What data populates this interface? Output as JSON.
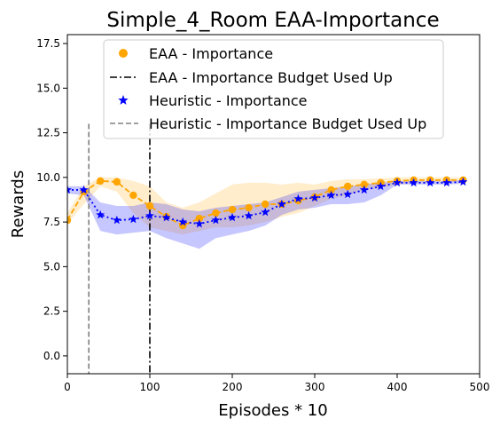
{
  "chart_data": {
    "type": "line",
    "title": "Simple_4_Room EAA-Importance",
    "xlabel": "Episodes * 10",
    "ylabel": "Rewards",
    "xlim": [
      0,
      500
    ],
    "ylim": [
      -1.0,
      18.0
    ],
    "xticks": [
      0,
      100,
      200,
      300,
      400,
      500
    ],
    "yticks": [
      0.0,
      2.5,
      5.0,
      7.5,
      10.0,
      12.5,
      15.0,
      17.5
    ],
    "xtick_labels": [
      "0",
      "100",
      "200",
      "300",
      "400",
      "500"
    ],
    "ytick_labels": [
      "0.0",
      "2.5",
      "5.0",
      "7.5",
      "10.0",
      "12.5",
      "15.0",
      "17.5"
    ],
    "grid": false,
    "legend_position": "top",
    "series": [
      {
        "name": "EAA - Importance",
        "kind": "scatter-line",
        "marker": "circle",
        "color": "#FFA500",
        "x": [
          0,
          20,
          40,
          60,
          80,
          100,
          120,
          140,
          160,
          180,
          200,
          220,
          240,
          260,
          280,
          300,
          320,
          340,
          360,
          380,
          400,
          420,
          440,
          460,
          480
        ],
        "y": [
          7.6,
          9.2,
          9.8,
          9.75,
          9.0,
          8.4,
          7.8,
          7.3,
          7.7,
          8.0,
          8.2,
          8.3,
          8.5,
          8.5,
          8.7,
          8.9,
          9.3,
          9.5,
          9.6,
          9.7,
          9.8,
          9.85,
          9.85,
          9.85,
          9.85
        ],
        "band_low": [
          7.4,
          8.5,
          9.5,
          9.2,
          8.0,
          7.2,
          7.0,
          6.8,
          7.0,
          7.2,
          7.2,
          7.3,
          7.5,
          7.8,
          8.0,
          8.4,
          8.8,
          9.0,
          9.3,
          9.4,
          9.6,
          9.7,
          9.75,
          9.75,
          9.75
        ],
        "band_high": [
          8.0,
          9.5,
          10.0,
          10.0,
          9.8,
          9.5,
          8.6,
          8.3,
          8.6,
          9.1,
          9.6,
          9.7,
          9.7,
          9.6,
          9.7,
          9.6,
          9.8,
          9.9,
          9.9,
          9.95,
          10.0,
          10.0,
          10.0,
          10.0,
          10.0
        ]
      },
      {
        "name": "Heuristic - Importance",
        "kind": "scatter-line",
        "marker": "star",
        "color": "#0000FF",
        "x": [
          0,
          20,
          40,
          60,
          80,
          100,
          120,
          140,
          160,
          180,
          200,
          220,
          240,
          260,
          280,
          300,
          320,
          340,
          360,
          380,
          400,
          420,
          440,
          460,
          480
        ],
        "y": [
          9.3,
          9.3,
          7.9,
          7.6,
          7.65,
          7.85,
          7.75,
          7.5,
          7.4,
          7.6,
          7.75,
          7.85,
          8.05,
          8.5,
          8.8,
          8.85,
          9.0,
          9.05,
          9.3,
          9.5,
          9.7,
          9.7,
          9.7,
          9.7,
          9.75
        ],
        "band_low": [
          9.1,
          9.0,
          7.0,
          6.8,
          6.9,
          7.0,
          6.6,
          6.3,
          6.0,
          6.6,
          6.8,
          7.0,
          7.3,
          7.9,
          8.2,
          8.3,
          8.5,
          8.5,
          8.6,
          9.0,
          9.6,
          9.6,
          9.6,
          9.6,
          9.65
        ],
        "band_high": [
          9.5,
          9.5,
          8.6,
          8.4,
          8.4,
          8.6,
          8.5,
          8.2,
          8.1,
          8.3,
          8.4,
          8.5,
          8.6,
          8.9,
          9.2,
          9.3,
          9.4,
          9.5,
          9.6,
          9.7,
          9.8,
          9.8,
          9.8,
          9.8,
          9.85
        ]
      },
      {
        "name": "EAA - Importance Budget Used Up",
        "kind": "vline",
        "style": "dashdot",
        "color": "#000000",
        "x": 100,
        "y_range": [
          -1.0,
          13.0
        ]
      },
      {
        "name": "Heuristic - Importance Budget Used Up",
        "kind": "vline",
        "style": "dashed",
        "color": "#808080",
        "x": 26,
        "y_range": [
          -1.0,
          13.0
        ]
      }
    ]
  }
}
